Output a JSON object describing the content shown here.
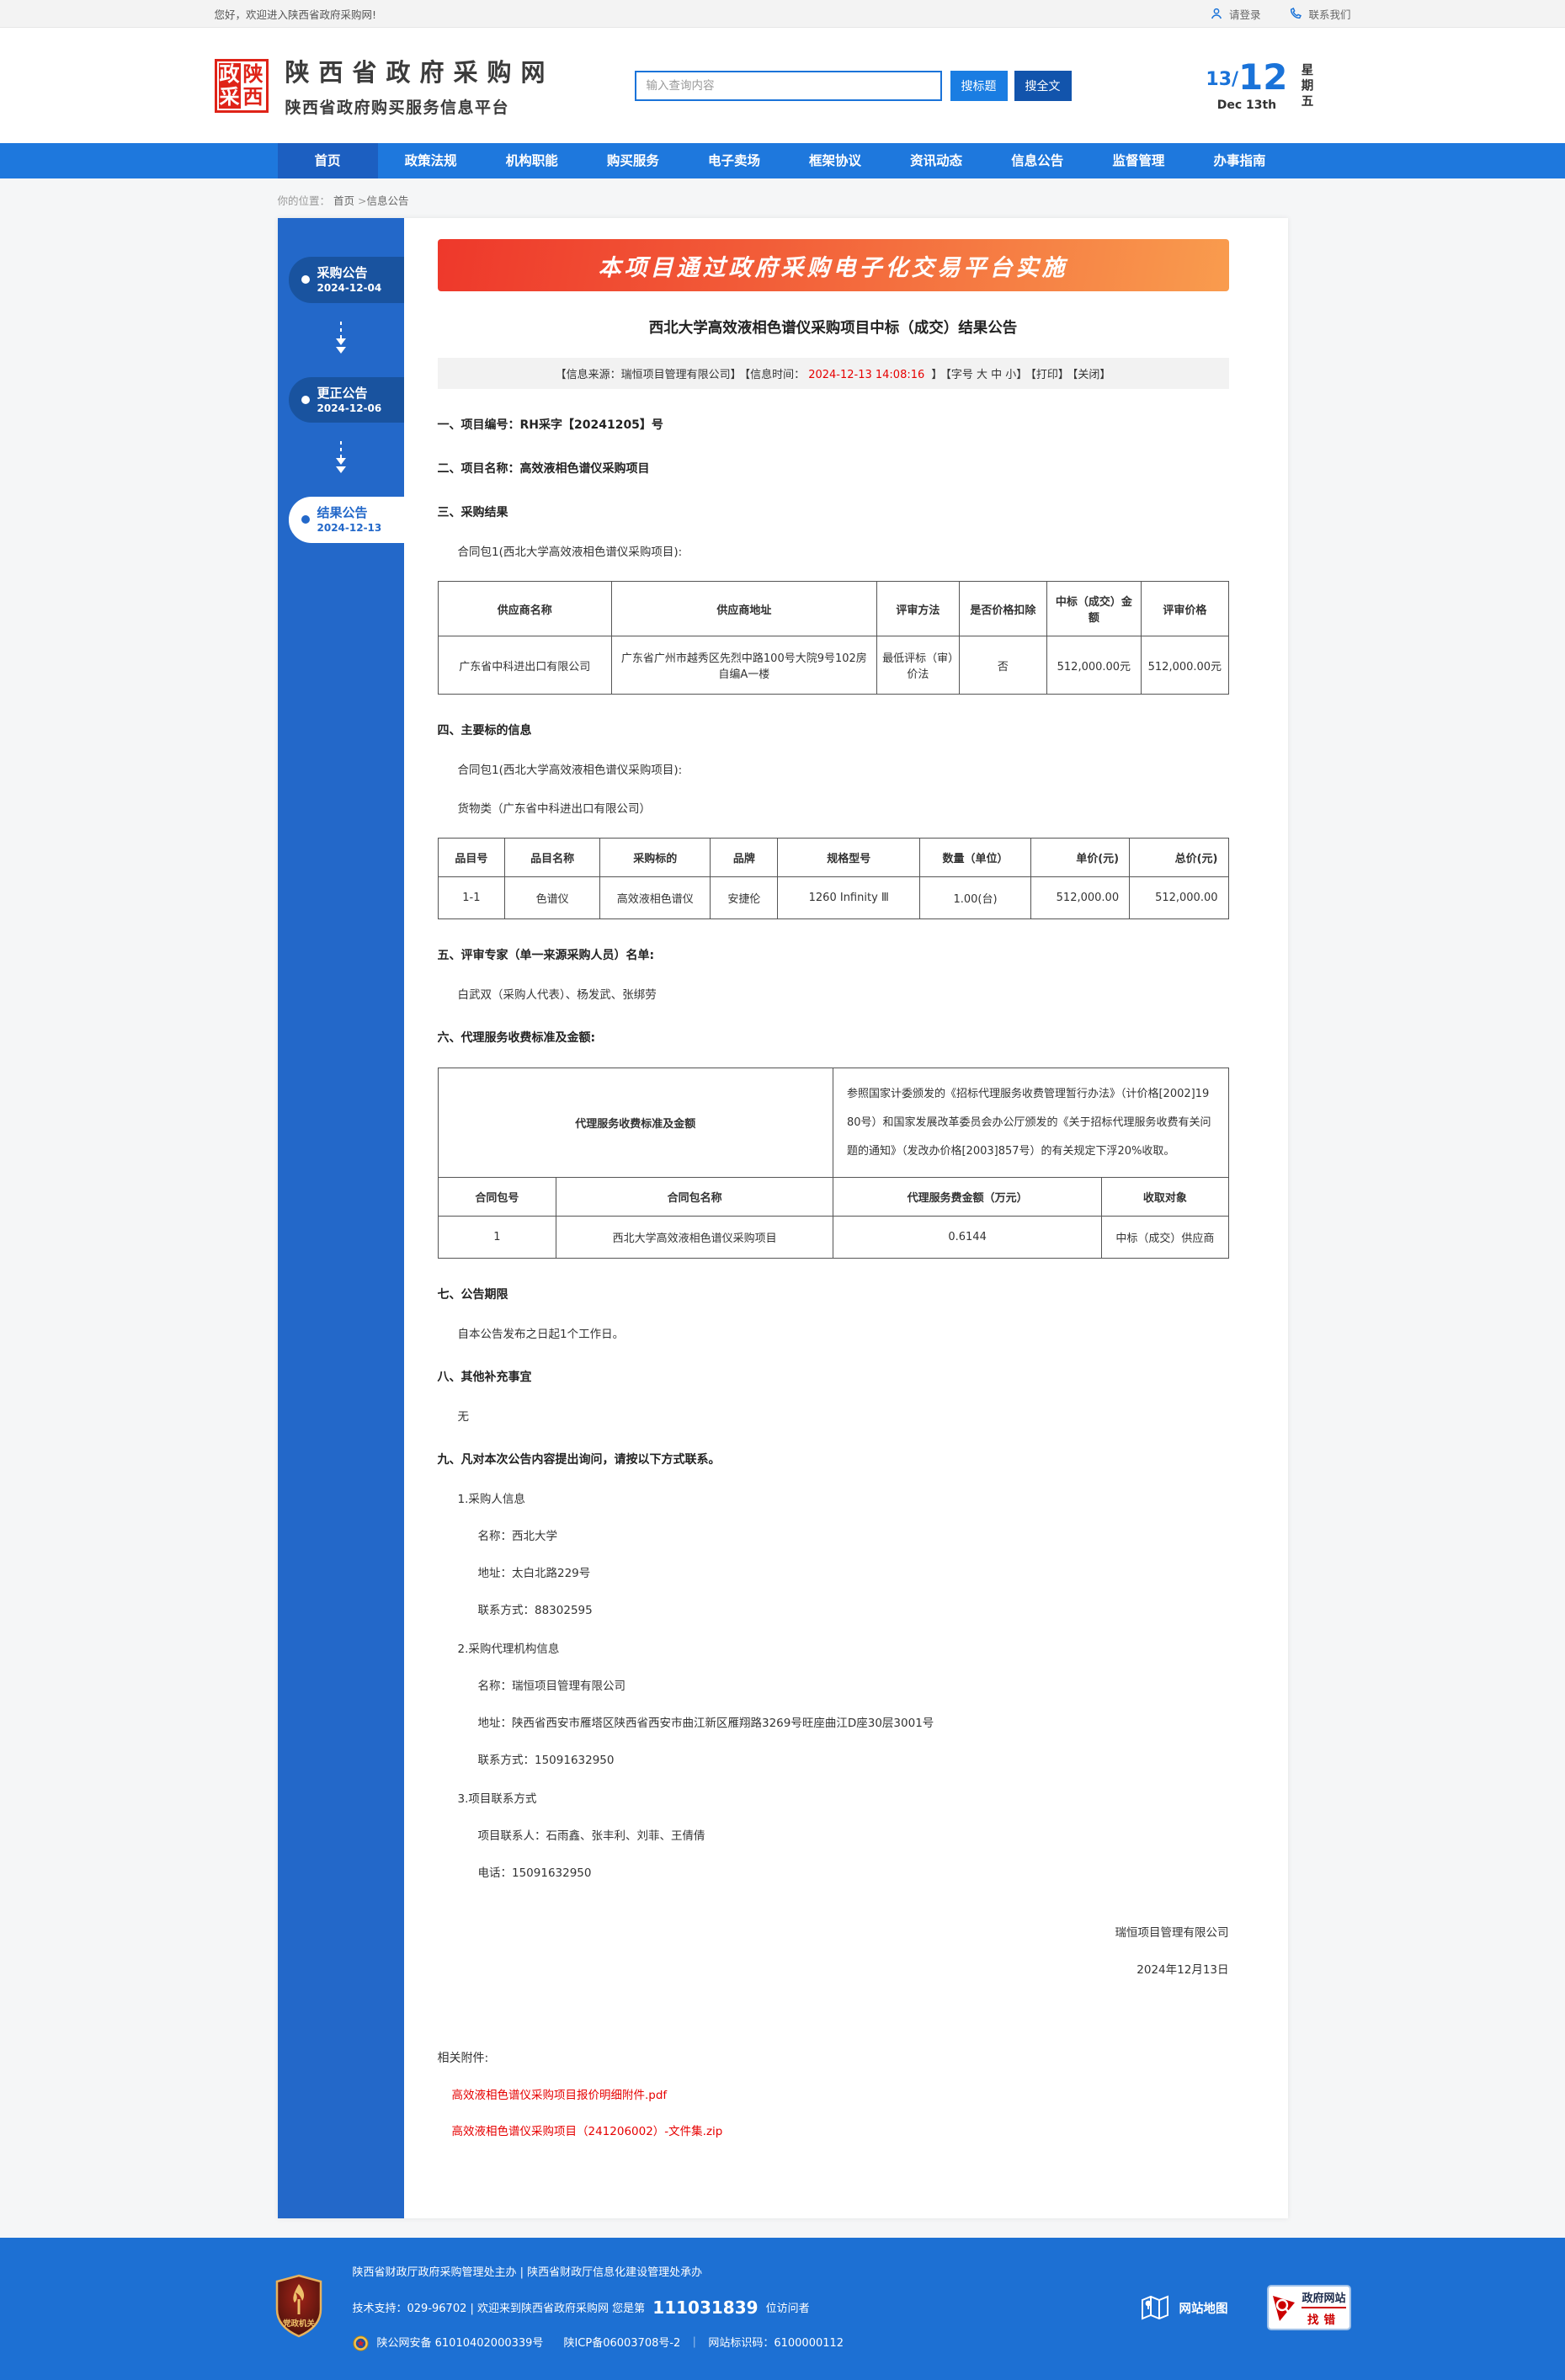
{
  "topbar": {
    "welcome": "您好，欢迎进入陕西省政府采购网!",
    "login": "请登录",
    "contact": "联系我们"
  },
  "header": {
    "seal": {
      "left": [
        "政",
        "采"
      ],
      "right": [
        "陕",
        "西"
      ]
    },
    "site_title": "陕西省政府采购网",
    "site_subtitle": "陕西省政府购买服务信息平台",
    "search": {
      "placeholder": "输入查询内容",
      "btn_title": "搜标题",
      "btn_fulltext": "搜全文"
    },
    "date": {
      "dm": "13/",
      "big": "12",
      "en": "Dec 13th",
      "week": "星期五"
    }
  },
  "nav": {
    "items": [
      {
        "label": "首页",
        "active": true
      },
      {
        "label": "政策法规",
        "active": false
      },
      {
        "label": "机构职能",
        "active": false
      },
      {
        "label": "购买服务",
        "active": false
      },
      {
        "label": "电子卖场",
        "active": false
      },
      {
        "label": "框架协议",
        "active": false
      },
      {
        "label": "资讯动态",
        "active": false
      },
      {
        "label": "信息公告",
        "active": false
      },
      {
        "label": "监督管理",
        "active": false
      },
      {
        "label": "办事指南",
        "active": false
      }
    ]
  },
  "breadcrumb": {
    "prefix": "你的位置：",
    "home": "首页",
    "sep": " >",
    "current": "信息公告"
  },
  "timeline": {
    "steps": [
      {
        "title": "采购公告",
        "date": "2024-12-04",
        "active": false
      },
      {
        "title": "更正公告",
        "date": "2024-12-06",
        "active": false
      },
      {
        "title": "结果公告",
        "date": "2024-12-13",
        "active": true
      }
    ]
  },
  "article": {
    "banner": "本项目通过政府采购电子化交易平台实施",
    "title": "西北大学高效液相色谱仪采购项目中标（成交）结果公告",
    "meta": [
      {
        "text": "【信息来源：瑞恒项目管理有限公司】",
        "red": false,
        "click": false
      },
      {
        "text": "【信息时间：",
        "red": false,
        "click": false
      },
      {
        "text": "2024-12-13 14:08:16",
        "red": true,
        "click": false
      },
      {
        "text": " 】",
        "red": false,
        "click": false
      },
      {
        "text": "【字号 大 中 小】",
        "red": false,
        "click": true
      },
      {
        "text": "【打印】",
        "red": false,
        "click": true
      },
      {
        "text": "【关闭】",
        "red": false,
        "click": true
      }
    ],
    "s1": "一、项目编号：RH采字【20241205】号",
    "s2": "二、项目名称：高效液相色谱仪采购项目",
    "s3_heading": "三、采购结果",
    "s3_package": "合同包1(西北大学高效液相色谱仪采购项目):",
    "table1": {
      "widths": [
        "22%",
        "33.5%",
        "10.5%",
        "11%",
        "12%",
        "11%"
      ],
      "headers": [
        "供应商名称",
        "供应商地址",
        "评审方法",
        "是否价格扣除",
        "中标（成交）金额",
        "评审价格"
      ],
      "rows": [
        [
          "广东省中科进出口有限公司",
          "广东省广州市越秀区先烈中路100号大院9号102房自编A一楼",
          "最低评标（审）价法",
          "否",
          "512,000.00元",
          "512,000.00元"
        ]
      ]
    },
    "s4_heading": "四、主要标的信息",
    "s4_package": "合同包1(西北大学高效液相色谱仪采购项目):",
    "s4_category": "货物类（广东省中科进出口有限公司）",
    "table2": {
      "widths": [
        "8.5%",
        "12%",
        "14%",
        "8.5%",
        "18%",
        "14%",
        "12.5%",
        "12.5%"
      ],
      "headers": [
        "品目号",
        "品目名称",
        "采购标的",
        "品牌",
        "规格型号",
        "数量（单位）",
        "单价(元)",
        "总价(元)"
      ],
      "num_cols": [
        6,
        7
      ],
      "rows": [
        [
          "1-1",
          "色谱仪",
          "高效液相色谱仪",
          "安捷伦",
          "1260 Infinity Ⅲ",
          "1.00(台)",
          "512,000.00",
          "512,000.00"
        ]
      ]
    },
    "s5_heading": "五、评审专家（单一来源采购人员）名单:",
    "s5_body": "白武双（采购人代表）、杨发武、张绑劳",
    "s6_heading": "六、代理服务收费标准及金额:",
    "table3": {
      "widths": [
        "15%",
        "35%",
        "34%",
        "16%"
      ],
      "merged_label": "代理服务收费标准及金额",
      "merged_text": "参照国家计委颁发的《招标代理服务收费管理暂行办法》（计价格[2002]1980号）和国家发展改革委员会办公厅颁发的《关于招标代理服务收费有关问题的通知》（发改办价格[2003]857号）的有关规定下浮20%收取。",
      "headers": [
        "合同包号",
        "合同包名称",
        "代理服务费金额（万元）",
        "收取对象"
      ],
      "rows": [
        [
          "1",
          "西北大学高效液相色谱仪采购项目",
          "0.6144",
          "中标（成交）供应商"
        ]
      ]
    },
    "s7_heading": "七、公告期限",
    "s7_body": "自本公告发布之日起1个工作日。",
    "s8_heading": "八、其他补充事宜",
    "s8_body": "无",
    "s9_heading": "九、凡对本次公告内容提出询问，请按以下方式联系。",
    "contacts": [
      {
        "title": "1.采购人信息",
        "lines": [
          "名称：西北大学",
          "地址：太白北路229号",
          "联系方式：88302595"
        ]
      },
      {
        "title": "2.采购代理机构信息",
        "lines": [
          "名称：瑞恒项目管理有限公司",
          "地址：陕西省西安市雁塔区陕西省西安市曲江新区雁翔路3269号旺座曲江D座30层3001号",
          "联系方式：15091632950"
        ]
      },
      {
        "title": "3.项目联系方式",
        "lines": [
          "项目联系人：石雨鑫、张丰利、刘菲、王倩倩",
          "电话：15091632950"
        ]
      }
    ],
    "signature": [
      "瑞恒项目管理有限公司",
      "2024年12月13日"
    ],
    "attach_label": "相关附件:",
    "attachments": [
      "高效液相色谱仪采购项目报价明细附件.pdf",
      "高效液相色谱仪采购项目（241206002）-文件集.zip"
    ]
  },
  "footer": {
    "badge": "党政机关",
    "line1": "陕西省财政厅政府采购管理处主办 | 陕西省财政厅信息化建设管理处承办",
    "line2_pre": "技术支持：029-96702 | 欢迎来到陕西省政府采购网 您是第",
    "visitor_count": "111031839",
    "line2_post": "位访问者",
    "beian": "陕公网安备 61010402000339号",
    "icp": "陕ICP备06003708号-2",
    "sep": "｜",
    "site_code": "网站标识码：6100000112",
    "sitemap": "网站地图",
    "zhaocuo_top": "政府网站",
    "zhaocuo_bottom": "找错"
  },
  "colors": {
    "accent": "#1d70d3",
    "nav": "#1e78dd",
    "nav_active": "#1c5fc1",
    "sidebar": "#2368c9",
    "pill": "#19539f",
    "red_text": "#e60000",
    "banner_from": "#ee382b",
    "banner_to": "#f99c4e",
    "seal_red": "#df2318"
  }
}
